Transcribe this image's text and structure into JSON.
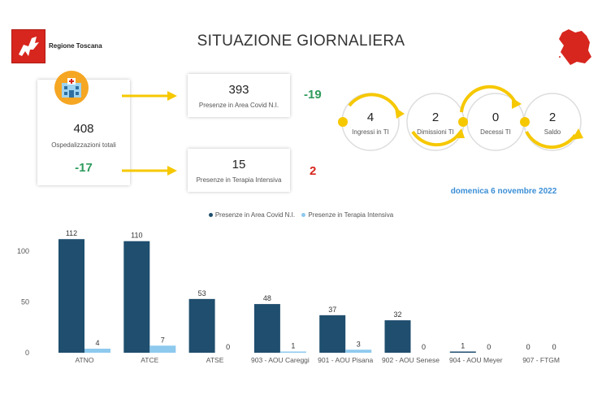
{
  "header": {
    "region_name": "Regione Toscana",
    "title": "SITUAZIONE GIORNALIERA"
  },
  "summary": {
    "total_value": "408",
    "total_label": "Ospedalizzazioni totali",
    "total_delta": "-17",
    "covid_value": "393",
    "covid_label": "Presenze in Area Covid N.I.",
    "covid_delta": "-19",
    "ti_value": "15",
    "ti_label": "Presenze in Terapia Intensiva",
    "ti_delta": "2"
  },
  "flow": {
    "ingressi_value": "4",
    "ingressi_label": "Ingressi in TI",
    "dimissioni_value": "2",
    "dimissioni_label": "Dimissioni TI",
    "decessi_value": "0",
    "decessi_label": "Decessi TI",
    "saldo_value": "2",
    "saldo_label": "Saldo"
  },
  "date_label": "domenica 6 novembre 2022",
  "colors": {
    "brand_red": "#d7261e",
    "series_dark": "#1f4e6e",
    "series_light": "#8ec9ee",
    "arrow_yellow": "#f6c800",
    "positive_green": "#2e9b5d",
    "date_blue": "#3b8fd6"
  },
  "icons": {
    "logo": "pegasus-logo-icon",
    "map": "tuscany-map-icon",
    "hospital": "hospital-icon"
  },
  "chart_data": {
    "type": "bar",
    "categories": [
      "ATNO",
      "ATCE",
      "ATSE",
      "903 - AOU Careggi",
      "901 - AOU Pisana",
      "902 - AOU Senese",
      "904 - AOU Meyer",
      "907 - FTGM"
    ],
    "series": [
      {
        "name": "Presenze in Area Covid N.I.",
        "values": [
          112,
          110,
          53,
          48,
          37,
          32,
          1,
          0
        ]
      },
      {
        "name": "Presenze in Terapia Intensiva",
        "values": [
          4,
          7,
          0,
          1,
          3,
          0,
          0,
          0
        ]
      }
    ],
    "yticks": [
      0,
      50,
      100
    ],
    "ylim": [
      0,
      125
    ],
    "legend_position": "top-center",
    "grid": false
  }
}
